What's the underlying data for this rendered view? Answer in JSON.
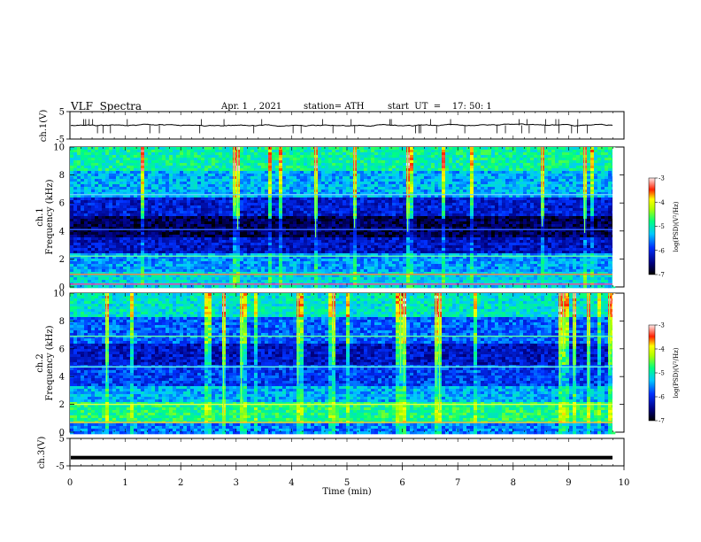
{
  "header": {
    "title": "VLF  Spectra",
    "date": "Apr. 1  , 2021",
    "station": "station= ATH",
    "start": "start  UT  =    17: 50: 1"
  },
  "colors": {
    "background": "#ffffff",
    "spectrogram_low": "#000030",
    "spectrogram_high": "#ff0000",
    "trace": "#000000"
  },
  "chart_data": [
    {
      "type": "line",
      "panel": "ch1-waveform",
      "ylabel": "ch.1(V)",
      "yticks": [
        "5",
        "-5"
      ],
      "ylim": [
        -5,
        5
      ],
      "xlim": [
        0,
        10
      ],
      "series": [
        {
          "x": [
            0,
            1,
            2,
            3,
            4,
            5,
            6,
            7,
            8,
            9,
            9.8
          ],
          "values": [
            0.2,
            0.0,
            0.1,
            -0.2,
            0.1,
            0.0,
            0.2,
            -0.1,
            0.1,
            -0.2,
            0.0
          ]
        }
      ]
    },
    {
      "type": "heatmap",
      "panel": "ch1-spectrogram",
      "ylabel_line1": "ch.1",
      "ylabel_line2": "Frequency (kHz)",
      "yticks": [
        "0",
        "2",
        "4",
        "6",
        "8",
        "10"
      ],
      "ylim": [
        0,
        10
      ],
      "xlim": [
        0,
        10
      ],
      "colorbar": {
        "label": "log(PSD)(V²/Hz)",
        "ticks": [
          "-3",
          "-4",
          "-5",
          "-6",
          "-7"
        ],
        "range": [
          -7,
          -3
        ]
      }
    },
    {
      "type": "heatmap",
      "panel": "ch2-spectrogram",
      "ylabel_line1": "ch.2",
      "ylabel_line2": "Frequency (kHz)",
      "yticks": [
        "0",
        "2",
        "4",
        "6",
        "8",
        "10"
      ],
      "ylim": [
        0,
        10
      ],
      "xlim": [
        0,
        10
      ],
      "colorbar": {
        "label": "log(PSD)(V²/Hz)",
        "ticks": [
          "-3",
          "-4",
          "-5",
          "-6",
          "-7"
        ],
        "range": [
          -7,
          -3
        ]
      }
    },
    {
      "type": "line",
      "panel": "ch3-waveform",
      "ylabel": "ch.3(V)",
      "yticks": [
        "5",
        "-5"
      ],
      "ylim": [
        -5,
        5
      ],
      "xlim": [
        0,
        10
      ],
      "series": [
        {
          "x": [
            0,
            9.8
          ],
          "values": [
            -2.0,
            -2.0
          ]
        }
      ],
      "xlabel": "Time  (min)",
      "xticks": [
        "0",
        "1",
        "2",
        "3",
        "4",
        "5",
        "6",
        "7",
        "8",
        "9",
        "10"
      ]
    }
  ]
}
